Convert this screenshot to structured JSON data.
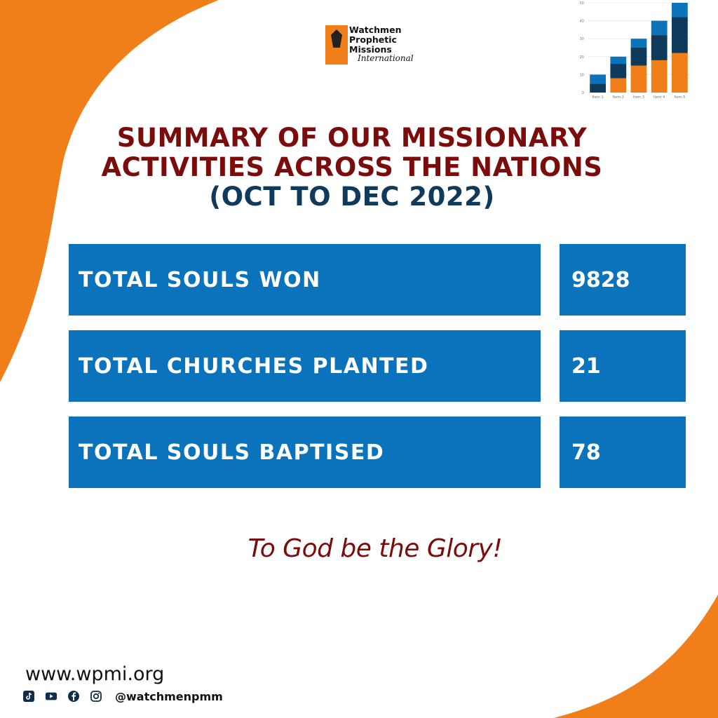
{
  "colors": {
    "orange": "#f07f1a",
    "banner_blue": "#0b73bb",
    "dark_red": "#7a0c0c",
    "navy": "#0f3a5c"
  },
  "logo": {
    "line1": "Watchmen",
    "line2": "Prophetic",
    "line3": "Missions",
    "script": "International"
  },
  "mini_chart": {
    "type": "bar",
    "categories": [
      "Item 1",
      "Item 2",
      "Item 3",
      "Item 4",
      "Item 5"
    ],
    "series": [
      {
        "values": [
          0,
          8,
          15,
          18,
          22
        ],
        "color": "#f07f1a"
      },
      {
        "values": [
          5,
          8,
          10,
          14,
          20
        ],
        "color": "#0f3a5c"
      },
      {
        "values": [
          5,
          4,
          5,
          8,
          8
        ],
        "color": "#0b73bb"
      }
    ],
    "ylim": [
      0,
      50
    ],
    "yticks": [
      "0",
      "10",
      "20",
      "30",
      "40",
      "50"
    ],
    "grid": true
  },
  "title": {
    "line1": "SUMMARY OF OUR MISSIONARY",
    "line2": "ACTIVITIES ACROSS THE NATIONS",
    "line3": "(OCT TO DEC 2022)"
  },
  "stats": [
    {
      "label": "TOTAL SOULS WON",
      "value": "9828"
    },
    {
      "label": "TOTAL CHURCHES PLANTED",
      "value": "21"
    },
    {
      "label": "TOTAL SOULS BAPTISED",
      "value": "78"
    }
  ],
  "glory": "To God be the Glory!",
  "website": "www.wpmi.org",
  "social": {
    "icons": [
      "tiktok-icon",
      "youtube-icon",
      "facebook-icon",
      "instagram-icon"
    ],
    "handle": "@watchmenpmm"
  }
}
